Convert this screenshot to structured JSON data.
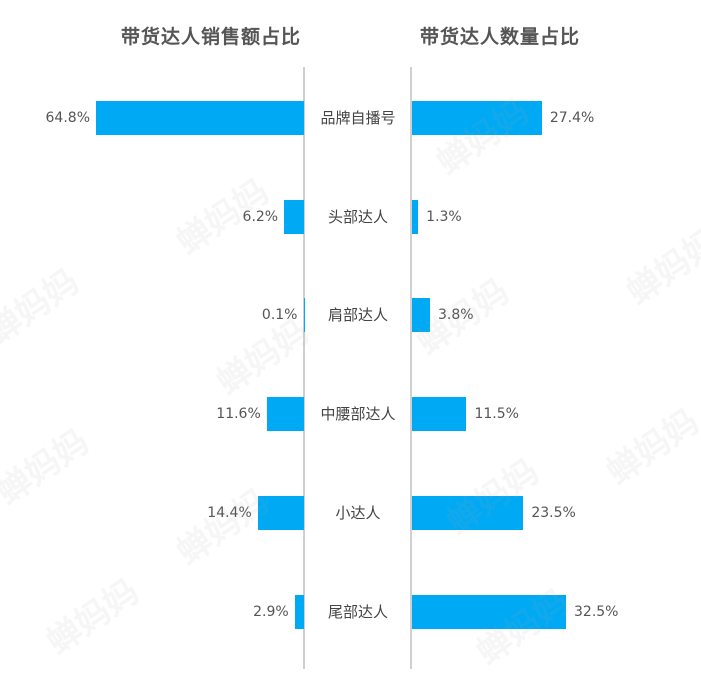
{
  "watermark": "蝉妈妈",
  "chart_data": [
    {
      "type": "bar",
      "title": "带货达人销售额占比",
      "orientation": "horizontal-left",
      "categories": [
        "品牌自播号",
        "头部达人",
        "肩部达人",
        "中腰部达人",
        "小达人",
        "尾部达人"
      ],
      "values": [
        64.8,
        6.2,
        0.1,
        11.6,
        14.4,
        2.9
      ],
      "value_labels": [
        "64.8%",
        "6.2%",
        "0.1%",
        "11.6%",
        "14.4%",
        "2.9%"
      ],
      "unit": "%",
      "color": "#00a9f4"
    },
    {
      "type": "bar",
      "title": "带货达人数量占比",
      "orientation": "horizontal-right",
      "categories": [
        "品牌自播号",
        "头部达人",
        "肩部达人",
        "中腰部达人",
        "小达人",
        "尾部达人"
      ],
      "values": [
        27.4,
        1.3,
        3.8,
        11.5,
        23.5,
        32.5
      ],
      "value_labels": [
        "27.4%",
        "1.3%",
        "3.8%",
        "11.5%",
        "23.5%",
        "32.5%"
      ],
      "unit": "%",
      "color": "#00a9f4"
    }
  ]
}
